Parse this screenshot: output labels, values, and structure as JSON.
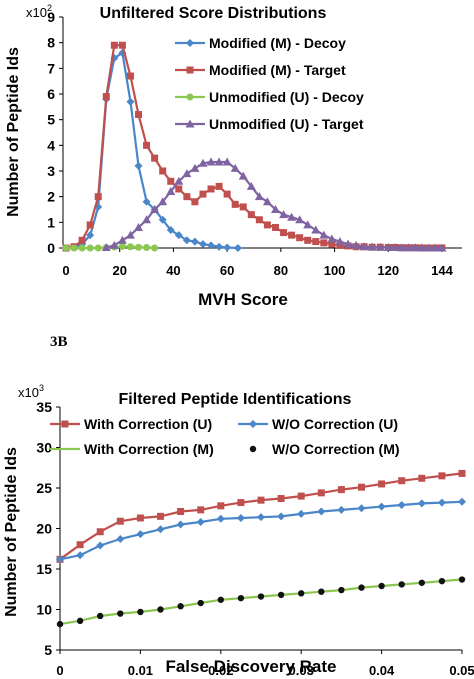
{
  "panel_label": "3B",
  "chart_data": [
    {
      "type": "line",
      "title": "Unfiltered Score Distributions",
      "xlabel": "MVH Score",
      "ylabel": "Number of Peptide Ids",
      "y_multiplier": "x10",
      "y_multiplier_exp": "2",
      "xlim": [
        0,
        150
      ],
      "ylim": [
        0,
        9
      ],
      "x_ticks": [
        "0",
        "20",
        "40",
        "60",
        "80",
        "100",
        "120",
        "144"
      ],
      "x_tick_values": [
        0,
        20,
        40,
        60,
        80,
        100,
        120,
        144
      ],
      "y_ticks": [
        "0",
        "1",
        "2",
        "3",
        "4",
        "5",
        "6",
        "7",
        "8",
        "9"
      ],
      "legend": "top-right",
      "series": [
        {
          "name": "Modified (M) - Decoy",
          "color": "#4a86c8",
          "marker": "diamond",
          "x": [
            0,
            3,
            6,
            9,
            12,
            15,
            18,
            21,
            24,
            27,
            30,
            33,
            36,
            39,
            42,
            45,
            48,
            51,
            54,
            57,
            60,
            64
          ],
          "y": [
            0,
            0.02,
            0.15,
            0.5,
            1.6,
            5.8,
            7.4,
            7.6,
            5.7,
            3.2,
            1.8,
            1.5,
            1.1,
            0.7,
            0.5,
            0.3,
            0.25,
            0.15,
            0.1,
            0.05,
            0.02,
            0
          ]
        },
        {
          "name": "Modified (M) - Target",
          "color": "#c0504d",
          "marker": "square",
          "x": [
            0,
            3,
            6,
            9,
            12,
            15,
            18,
            21,
            24,
            27,
            30,
            33,
            36,
            39,
            42,
            45,
            48,
            51,
            54,
            57,
            60,
            63,
            66,
            69,
            72,
            75,
            78,
            81,
            84,
            87,
            90,
            93,
            96,
            99,
            102,
            105,
            108,
            111,
            114,
            117,
            120,
            123,
            126,
            129,
            132,
            135,
            138,
            141,
            144
          ],
          "y": [
            0,
            0.05,
            0.3,
            0.9,
            2.0,
            5.9,
            7.9,
            7.9,
            6.7,
            5.2,
            4.0,
            3.5,
            3.0,
            2.6,
            2.3,
            2.0,
            1.8,
            2.1,
            2.3,
            2.4,
            2.1,
            1.7,
            1.6,
            1.3,
            1.1,
            0.9,
            0.8,
            0.6,
            0.5,
            0.4,
            0.3,
            0.25,
            0.2,
            0.15,
            0.1,
            0.08,
            0.05,
            0.05,
            0.03,
            0.03,
            0.02,
            0.02,
            0.01,
            0.01,
            0.01,
            0,
            0,
            0,
            0
          ]
        },
        {
          "name": "Unmodified (U) - Decoy",
          "color": "#8cc751",
          "marker": "circle",
          "x": [
            0,
            3,
            6,
            9,
            12,
            15,
            18,
            21,
            24,
            27,
            30,
            33
          ],
          "y": [
            0,
            0,
            0,
            0,
            0,
            0.02,
            0.04,
            0.06,
            0.05,
            0.03,
            0.02,
            0
          ]
        },
        {
          "name": "Unmodified (U) - Target",
          "color": "#8064a2",
          "marker": "triangle",
          "x": [
            15,
            18,
            21,
            24,
            27,
            30,
            33,
            36,
            39,
            42,
            45,
            48,
            51,
            54,
            57,
            60,
            63,
            66,
            69,
            72,
            75,
            78,
            81,
            84,
            87,
            90,
            93,
            96,
            99,
            102,
            105,
            108,
            111,
            114,
            117,
            120,
            123,
            126,
            129,
            132,
            135,
            138,
            141,
            144
          ],
          "y": [
            0.02,
            0.1,
            0.3,
            0.5,
            0.8,
            1.1,
            1.5,
            1.8,
            2.2,
            2.6,
            2.9,
            3.1,
            3.3,
            3.35,
            3.35,
            3.35,
            3.1,
            2.8,
            2.4,
            2.0,
            1.8,
            1.5,
            1.3,
            1.2,
            1.1,
            0.9,
            0.7,
            0.5,
            0.35,
            0.25,
            0.15,
            0.1,
            0.05,
            0.04,
            0.03,
            0.02,
            0.02,
            0.01,
            0.01,
            0.01,
            0.01,
            0,
            0,
            0
          ]
        }
      ]
    },
    {
      "type": "line",
      "title": "Filtered Peptide Identifications",
      "xlabel": "False Discovery Rate",
      "ylabel": "Number of Peptide Ids",
      "y_multiplier": "x10",
      "y_multiplier_exp": "3",
      "xlim": [
        0,
        0.05
      ],
      "ylim": [
        5,
        35
      ],
      "x_ticks": [
        "0",
        "0.01",
        "0.02",
        "0.03",
        "0.04",
        "0.05"
      ],
      "x_tick_values": [
        0,
        0.01,
        0.02,
        0.03,
        0.04,
        0.05
      ],
      "y_ticks": [
        "5",
        "10",
        "15",
        "20",
        "25",
        "30",
        "35"
      ],
      "y_tick_values": [
        5,
        10,
        15,
        20,
        25,
        30,
        35
      ],
      "legend": "top",
      "series": [
        {
          "name": "With Correction (U)",
          "color": "#c0504d",
          "marker": "square",
          "x": [
            0,
            0.0025,
            0.005,
            0.0075,
            0.01,
            0.0125,
            0.015,
            0.0175,
            0.02,
            0.0225,
            0.025,
            0.0275,
            0.03,
            0.0325,
            0.035,
            0.0375,
            0.04,
            0.0425,
            0.045,
            0.0475,
            0.05
          ],
          "y": [
            16.2,
            18.0,
            19.6,
            20.9,
            21.3,
            21.5,
            22.1,
            22.3,
            22.8,
            23.2,
            23.5,
            23.7,
            24.0,
            24.4,
            24.8,
            25.1,
            25.5,
            25.9,
            26.2,
            26.5,
            26.8
          ]
        },
        {
          "name": "W/O Correction (U)",
          "color": "#4a86c8",
          "marker": "diamond",
          "x": [
            0,
            0.0025,
            0.005,
            0.0075,
            0.01,
            0.0125,
            0.015,
            0.0175,
            0.02,
            0.0225,
            0.025,
            0.0275,
            0.03,
            0.0325,
            0.035,
            0.0375,
            0.04,
            0.0425,
            0.045,
            0.0475,
            0.05
          ],
          "y": [
            16.2,
            16.7,
            17.9,
            18.7,
            19.3,
            19.9,
            20.5,
            20.8,
            21.2,
            21.3,
            21.4,
            21.5,
            21.8,
            22.1,
            22.3,
            22.5,
            22.7,
            22.9,
            23.1,
            23.2,
            23.3
          ]
        },
        {
          "name": "With Correction (M)",
          "color": "#8cc751",
          "marker": "none",
          "x": [
            0,
            0.0025,
            0.005,
            0.0075,
            0.01,
            0.0125,
            0.015,
            0.0175,
            0.02,
            0.0225,
            0.025,
            0.0275,
            0.03,
            0.0325,
            0.035,
            0.0375,
            0.04,
            0.0425,
            0.045,
            0.0475,
            0.05
          ],
          "y": [
            8.2,
            8.6,
            9.2,
            9.5,
            9.7,
            10.0,
            10.4,
            10.8,
            11.2,
            11.4,
            11.6,
            11.8,
            12.0,
            12.2,
            12.4,
            12.7,
            12.9,
            13.1,
            13.3,
            13.5,
            13.7
          ]
        },
        {
          "name": "W/O Correction (M)",
          "color": "#111111",
          "marker": "dot",
          "x": [
            0,
            0.0025,
            0.005,
            0.0075,
            0.01,
            0.0125,
            0.015,
            0.0175,
            0.02,
            0.0225,
            0.025,
            0.0275,
            0.03,
            0.0325,
            0.035,
            0.0375,
            0.04,
            0.0425,
            0.045,
            0.0475,
            0.05
          ],
          "y": [
            8.2,
            8.6,
            9.2,
            9.5,
            9.7,
            10.0,
            10.4,
            10.8,
            11.2,
            11.4,
            11.6,
            11.8,
            12.0,
            12.2,
            12.4,
            12.7,
            12.9,
            13.1,
            13.3,
            13.5,
            13.7
          ]
        }
      ]
    }
  ]
}
